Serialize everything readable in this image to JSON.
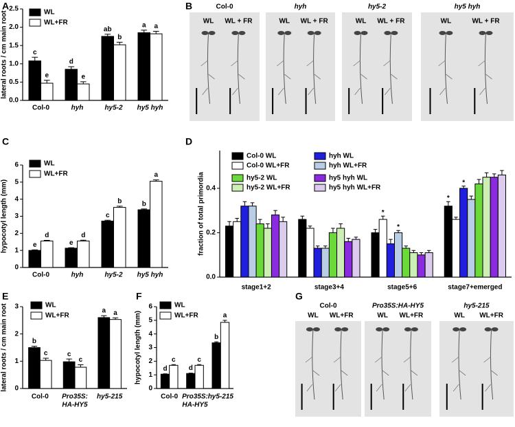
{
  "chart_data": [
    {
      "type": "bar",
      "panel": "A",
      "ylabel": "lateral roots / cm main root",
      "categories": [
        "Col-0",
        "hyh",
        "hy5-2",
        "hy5 hyh"
      ],
      "ylim": [
        0,
        2.5
      ],
      "yticks": [
        {
          "value": 0,
          "label": "0.0"
        },
        {
          "value": 0.5,
          "label": "0.5"
        },
        {
          "value": 1,
          "label": "1.0"
        },
        {
          "value": 1.5,
          "label": "1.5"
        },
        {
          "value": 2,
          "label": "2.0"
        },
        {
          "value": 2.5,
          "label": "2.5"
        }
      ],
      "series": [
        {
          "name": "WL",
          "color": "#000000",
          "values": [
            1.08,
            0.85,
            1.75,
            1.85
          ],
          "errors": [
            0.1,
            0.07,
            0.06,
            0.07
          ],
          "letters": [
            "c",
            "d",
            "ab",
            "a"
          ]
        },
        {
          "name": "WL+FR",
          "color": "#ffffff",
          "values": [
            0.47,
            0.45,
            1.52,
            1.82
          ],
          "errors": [
            0.08,
            0.06,
            0.07,
            0.07
          ],
          "letters": [
            "e",
            "e",
            "b",
            "a"
          ]
        }
      ]
    },
    {
      "type": "bar",
      "panel": "C",
      "ylabel": "hypocotyl length (mm)",
      "categories": [
        "Col-0",
        "hyh",
        "hy5-2",
        "hy5 hyh"
      ],
      "ylim": [
        0,
        6
      ],
      "yticks": [
        0,
        1,
        2,
        3,
        4,
        5,
        6
      ],
      "series": [
        {
          "name": "WL",
          "color": "#000000",
          "values": [
            1.0,
            1.13,
            2.72,
            3.38
          ],
          "errors": [
            0.03,
            0.03,
            0.05,
            0.05
          ],
          "letters": [
            "e",
            "e",
            "c",
            "b"
          ]
        },
        {
          "name": "WL+FR",
          "color": "#ffffff",
          "values": [
            1.55,
            1.55,
            3.52,
            5.05
          ],
          "errors": [
            0.04,
            0.05,
            0.07,
            0.08
          ],
          "letters": [
            "d",
            "d",
            "b",
            "a"
          ]
        }
      ]
    },
    {
      "type": "bar",
      "panel": "D",
      "ylabel": "fraction of total primordia",
      "categories": [
        "stage1+2",
        "stage3+4",
        "stage5+6",
        "stage7+emerged"
      ],
      "ylim": [
        0,
        0.57
      ],
      "yticks": [
        {
          "value": 0,
          "label": "0.0"
        },
        {
          "value": 0.2,
          "label": "0.2"
        },
        {
          "value": 0.4,
          "label": "0.4"
        }
      ],
      "series": [
        {
          "name": "Col-0 WL",
          "color": "#000000",
          "values": [
            0.23,
            0.26,
            0.2,
            0.32
          ],
          "errors": [
            0.02,
            0.015,
            0.015,
            0.02
          ],
          "letters": [
            null,
            null,
            null,
            "*"
          ]
        },
        {
          "name": "Col-0 WL+FR",
          "color": "#ffffff",
          "values": [
            0.25,
            0.22,
            0.26,
            0.26
          ],
          "errors": [
            0.015,
            0.01,
            0.015,
            0.01
          ],
          "letters": [
            null,
            null,
            "*",
            null
          ]
        },
        {
          "name": "hyh WL",
          "color": "#1f1fdd",
          "values": [
            0.32,
            0.13,
            0.15,
            0.4
          ],
          "errors": [
            0.02,
            0.01,
            0.02,
            0.01
          ],
          "letters": [
            null,
            null,
            null,
            "*"
          ]
        },
        {
          "name": "hyh WL+FR",
          "color": "#b9cde6",
          "values": [
            0.32,
            0.13,
            0.2,
            0.35
          ],
          "errors": [
            0.015,
            0.01,
            0.01,
            0.015
          ],
          "letters": [
            null,
            null,
            "*",
            null
          ]
        },
        {
          "name": "hy5-2 WL",
          "color": "#6cd93a",
          "values": [
            0.24,
            0.2,
            0.13,
            0.42
          ],
          "errors": [
            0.02,
            0.02,
            0.01,
            0.02
          ],
          "letters": null
        },
        {
          "name": "hy5-2 WL+FR",
          "color": "#cdeeb4",
          "values": [
            0.22,
            0.22,
            0.11,
            0.45
          ],
          "errors": [
            0.02,
            0.02,
            0.01,
            0.02
          ],
          "letters": null
        },
        {
          "name": "hy5 hyh WL",
          "color": "#8b2be0",
          "values": [
            0.28,
            0.16,
            0.1,
            0.45
          ],
          "errors": [
            0.02,
            0.015,
            0.01,
            0.015
          ],
          "letters": null
        },
        {
          "name": "hy5 hyh WL+FR",
          "color": "#dacbef",
          "values": [
            0.25,
            0.17,
            0.11,
            0.46
          ],
          "errors": [
            0.02,
            0.01,
            0.01,
            0.02
          ],
          "letters": null
        }
      ]
    },
    {
      "type": "bar",
      "panel": "E",
      "ylabel": "lateral roots / cm main root",
      "categories": [
        "Col-0",
        [
          "Pro35S:",
          "HA-HY5"
        ],
        "hy5-215"
      ],
      "ylim": [
        0,
        3
      ],
      "yticks": [
        0,
        1,
        2,
        3
      ],
      "series": [
        {
          "name": "WL",
          "color": "#000000",
          "values": [
            1.5,
            0.98,
            2.6
          ],
          "errors": [
            0.05,
            0.1,
            0.07
          ],
          "letters": [
            "b",
            "c",
            "a"
          ]
        },
        {
          "name": "WL+FR",
          "color": "#ffffff",
          "values": [
            1.03,
            0.78,
            2.53
          ],
          "errors": [
            0.08,
            0.09,
            0.06
          ],
          "letters": [
            "c",
            "c",
            "a"
          ]
        }
      ]
    },
    {
      "type": "bar",
      "panel": "F",
      "ylabel": "hypocotyl length (mm)",
      "categories": [
        "Col-0",
        [
          "Pro35S:",
          "HA-HY5"
        ],
        "hy5-215"
      ],
      "ylim": [
        0,
        6
      ],
      "yticks": [
        0,
        1,
        2,
        3,
        4,
        5,
        6
      ],
      "series": [
        {
          "name": "WL",
          "color": "#000000",
          "values": [
            1.05,
            1.1,
            3.35
          ],
          "errors": [
            0.03,
            0.03,
            0.07
          ],
          "letters": [
            "d",
            "d",
            "b"
          ]
        },
        {
          "name": "WL+FR",
          "color": "#ffffff",
          "values": [
            1.7,
            1.7,
            4.85
          ],
          "errors": [
            0.05,
            0.05,
            0.15
          ],
          "letters": [
            "c",
            "c",
            "a"
          ]
        }
      ]
    }
  ],
  "photo_panels": [
    {
      "panel": "B",
      "groups": [
        {
          "title": "Col-0",
          "conditions": [
            "WL",
            "WL + FR"
          ]
        },
        {
          "title": "hyh",
          "conditions": [
            "WL",
            "WL + FR"
          ]
        },
        {
          "title": "hy5-2",
          "conditions": [
            "WL",
            "WL + FR"
          ]
        },
        {
          "title": "hy5 hyh",
          "conditions": [
            "WL",
            "WL + FR"
          ]
        }
      ]
    },
    {
      "panel": "G",
      "groups": [
        {
          "title": "Col-0",
          "conditions": [
            "WL",
            "WL+FR"
          ]
        },
        {
          "title": "Pro35S:HA-HY5",
          "conditions": [
            "WL",
            "WL+FR"
          ]
        },
        {
          "title": "hy5-215",
          "conditions": [
            "WL",
            "WL+FR"
          ]
        }
      ]
    }
  ]
}
